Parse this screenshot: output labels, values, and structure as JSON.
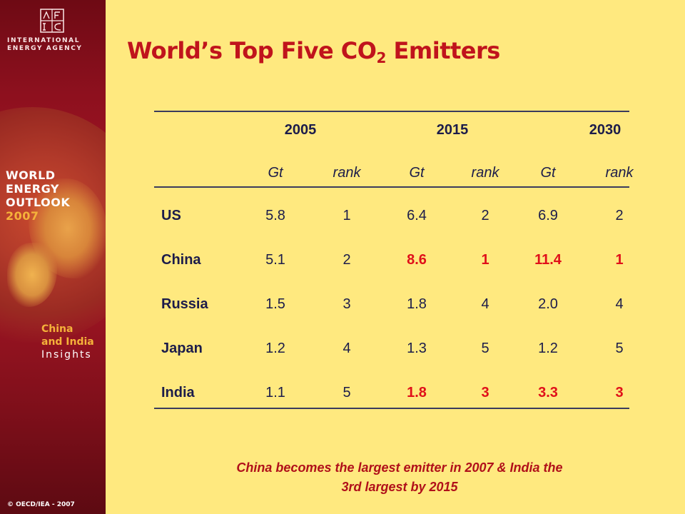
{
  "sidebar": {
    "agency_lines": [
      "INTERNATIONAL",
      "ENERGY AGENCY"
    ],
    "weo_lines": [
      "WORLD",
      "ENERGY",
      "OUTLOOK"
    ],
    "weo_year": "2007",
    "insights_lines": [
      "China",
      "and India",
      "Insights"
    ],
    "copyright": "© OECD/IEA - 2007"
  },
  "title": {
    "main": "World’s Top Five CO",
    "subscript": "2",
    "tail": " Emitters"
  },
  "table": {
    "years": [
      "2005",
      "2015",
      "2030"
    ],
    "subheaders": [
      "Gt",
      "rank",
      "Gt",
      "rank",
      "Gt",
      "rank"
    ],
    "rows": [
      {
        "country": "US",
        "values": [
          "5.8",
          "1",
          "6.4",
          "2",
          "6.9",
          "2"
        ],
        "highlight": [
          false,
          false,
          false,
          false,
          false,
          false
        ]
      },
      {
        "country": "China",
        "values": [
          "5.1",
          "2",
          "8.6",
          "1",
          "11.4",
          "1"
        ],
        "highlight": [
          false,
          false,
          true,
          true,
          true,
          true
        ]
      },
      {
        "country": "Russia",
        "values": [
          "1.5",
          "3",
          "1.8",
          "4",
          "2.0",
          "4"
        ],
        "highlight": [
          false,
          false,
          false,
          false,
          false,
          false
        ]
      },
      {
        "country": "Japan",
        "values": [
          "1.2",
          "4",
          "1.3",
          "5",
          "1.2",
          "5"
        ],
        "highlight": [
          false,
          false,
          false,
          false,
          false,
          false
        ]
      },
      {
        "country": "India",
        "values": [
          "1.1",
          "5",
          "1.8",
          "3",
          "3.3",
          "3"
        ],
        "highlight": [
          false,
          false,
          true,
          true,
          true,
          true
        ]
      }
    ],
    "colors": {
      "text": "#1c1c4a",
      "highlight": "#e0101a"
    }
  },
  "footnote": {
    "line1": "China becomes the largest emitter in 2007 & India the",
    "line2": "3rd largest by 2015"
  }
}
